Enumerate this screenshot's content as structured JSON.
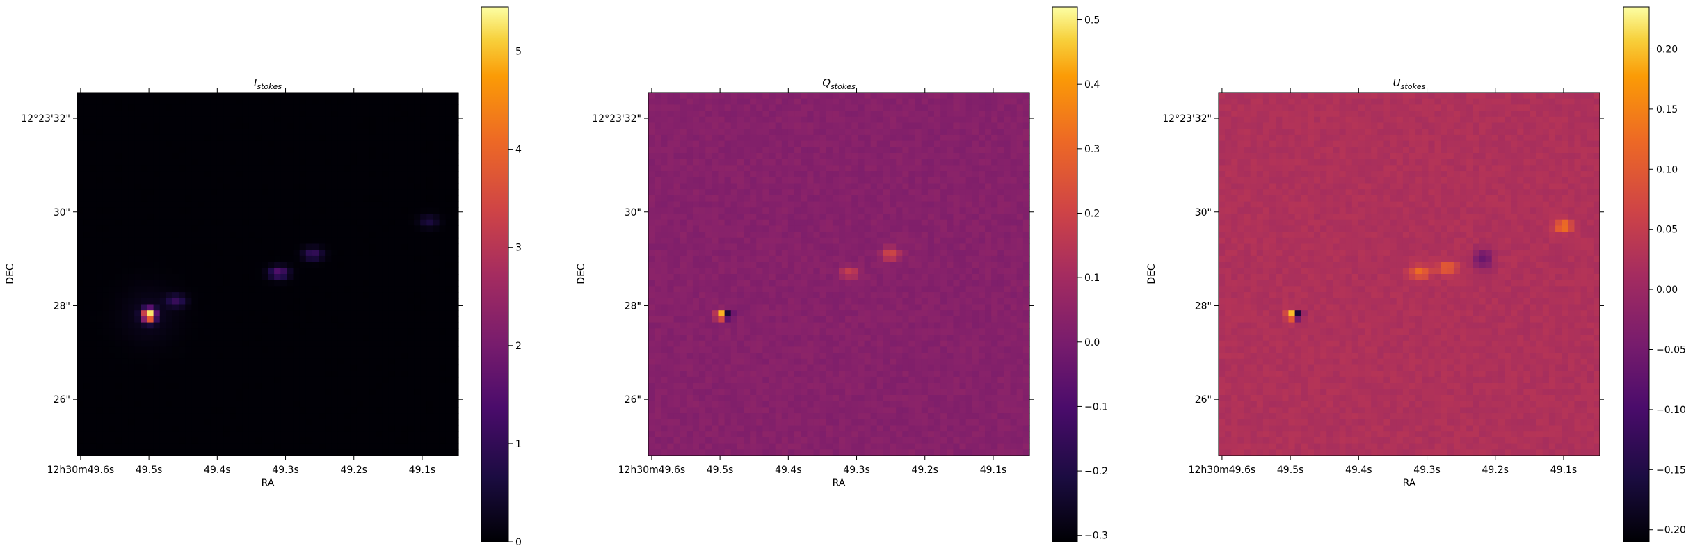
{
  "chart_data": [
    {
      "type": "heatmap",
      "title": "I",
      "title_sub": "stokes",
      "xlabel": "RA",
      "ylabel": "DEC",
      "x_ticks": [
        "12h30m49.6s",
        "49.5s",
        "49.4s",
        "49.3s",
        "49.2s",
        "49.1s"
      ],
      "y_ticks": [
        "12°23'32\"",
        "30\"",
        "28\"",
        "26\""
      ],
      "colormap": "inferno",
      "colorbar": {
        "range": [
          0,
          5.45
        ],
        "ticks": [
          "0",
          "1",
          "2",
          "3",
          "4",
          "5"
        ]
      },
      "background_value": 0.02,
      "features": [
        {
          "name": "nucleus",
          "ra_s": 49.5,
          "dec_arcsec": 27.8,
          "peak": 5.45
        },
        {
          "name": "jet knot",
          "ra_s": 49.31,
          "dec_arcsec": 28.7,
          "peak": 1.4
        },
        {
          "name": "jet knot",
          "ra_s": 49.26,
          "dec_arcsec": 29.1,
          "peak": 1.0
        },
        {
          "name": "jet knot",
          "ra_s": 49.46,
          "dec_arcsec": 28.1,
          "peak": 0.9
        },
        {
          "name": "jet knot",
          "ra_s": 49.09,
          "dec_arcsec": 29.8,
          "peak": 0.6
        }
      ]
    },
    {
      "type": "heatmap",
      "title": "Q",
      "title_sub": "stokes",
      "xlabel": "RA",
      "ylabel": "DEC",
      "x_ticks": [
        "12h30m49.6s",
        "49.5s",
        "49.4s",
        "49.3s",
        "49.2s",
        "49.1s"
      ],
      "y_ticks": [
        "12°23'32\"",
        "30\"",
        "28\"",
        "26\""
      ],
      "colormap": "inferno",
      "colorbar": {
        "range": [
          -0.31,
          0.52
        ],
        "ticks": [
          "−0.3",
          "−0.2",
          "−0.1",
          "0.0",
          "0.1",
          "0.2",
          "0.3",
          "0.4",
          "0.5"
        ]
      },
      "background_value": 0.0,
      "features": [
        {
          "name": "nucleus",
          "ra_s": 49.5,
          "dec_arcsec": 27.8,
          "peak": 0.52,
          "trough": -0.31
        },
        {
          "name": "jet knot",
          "ra_s": 49.31,
          "dec_arcsec": 28.7,
          "peak": 0.14
        },
        {
          "name": "jet knot",
          "ra_s": 49.25,
          "dec_arcsec": 29.1,
          "peak": 0.16
        }
      ]
    },
    {
      "type": "heatmap",
      "title": "U",
      "title_sub": "stokes",
      "xlabel": "RA",
      "ylabel": "DEC",
      "x_ticks": [
        "12h30m49.6s",
        "49.5s",
        "49.4s",
        "49.3s",
        "49.2s",
        "49.1s"
      ],
      "y_ticks": [
        "12°23'32\"",
        "30\"",
        "28\"",
        "26\""
      ],
      "colormap": "inferno",
      "colorbar": {
        "range": [
          -0.21,
          0.235
        ],
        "ticks": [
          "−0.20",
          "−0.15",
          "−0.10",
          "−0.05",
          "0.00",
          "0.05",
          "0.10",
          "0.15",
          "0.20"
        ]
      },
      "background_value": 0.0,
      "features": [
        {
          "name": "nucleus",
          "ra_s": 49.5,
          "dec_arcsec": 27.8,
          "peak": 0.23,
          "trough": -0.21
        },
        {
          "name": "jet knot",
          "ra_s": 49.31,
          "dec_arcsec": 28.7,
          "peak": 0.1
        },
        {
          "name": "jet knot",
          "ra_s": 49.27,
          "dec_arcsec": 28.8,
          "peak": 0.09
        },
        {
          "name": "jet knot",
          "ra_s": 49.23,
          "dec_arcsec": 29.0,
          "trough": -0.08
        },
        {
          "name": "jet knot",
          "ra_s": 49.1,
          "dec_arcsec": 29.7,
          "peak": 0.11
        }
      ]
    }
  ]
}
